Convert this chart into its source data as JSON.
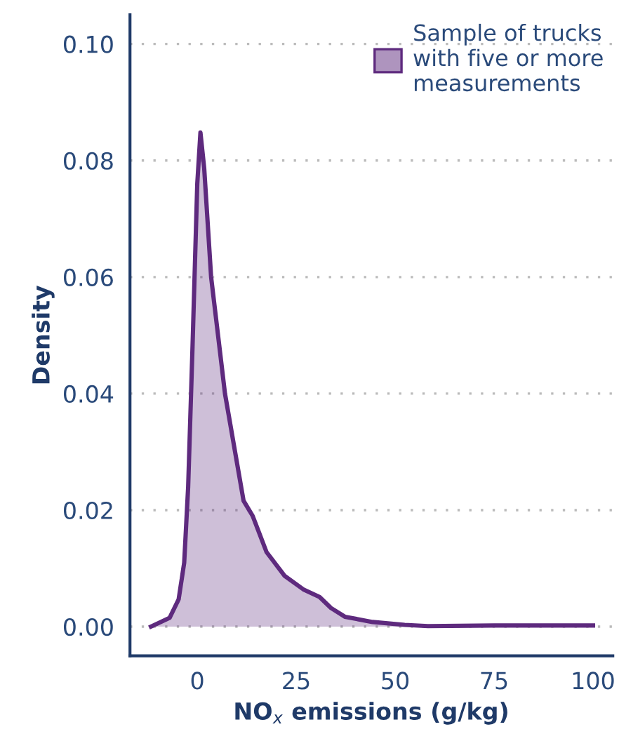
{
  "chart_data": {
    "type": "area",
    "xlabel": "NO$_{x}$ emissions (g/kg)",
    "ylabel": "Density",
    "xlim": [
      -17,
      105
    ],
    "ylim": [
      -0.005,
      0.105
    ],
    "xticks": [
      0,
      25,
      50,
      75,
      100
    ],
    "yticks": [
      {
        "value": 0,
        "label": "0.00"
      },
      {
        "value": 0.02,
        "label": "0.02"
      },
      {
        "value": 0.04,
        "label": "0.04"
      },
      {
        "value": 0.06,
        "label": "0.06"
      },
      {
        "value": 0.08,
        "label": "0.08"
      },
      {
        "value": 0.1,
        "label": "0.10"
      }
    ],
    "grid": "y",
    "legend": "top right",
    "series": [
      {
        "name": "Sample of trucks\nwith five or more\nmeasurements",
        "color": "#5e2a7e",
        "x": [
          -11.7,
          -7,
          -4.7,
          -3.3,
          -2.3,
          -1.2,
          0,
          0.8,
          1.75,
          3.5,
          7,
          11.7,
          14,
          17.5,
          22.1,
          26.8,
          30.9,
          33.8,
          37.3,
          44.3,
          52.4,
          58.3,
          75,
          100
        ],
        "values": [
          0,
          0.0015,
          0.0047,
          0.011,
          0.024,
          0.048,
          0.076,
          0.0848,
          0.0787,
          0.06,
          0.04,
          0.0216,
          0.019,
          0.0128,
          0.0087,
          0.0064,
          0.0051,
          0.0032,
          0.0017,
          0.0008,
          0.0003,
          0.0001,
          0.0002,
          0.0002
        ]
      }
    ]
  }
}
